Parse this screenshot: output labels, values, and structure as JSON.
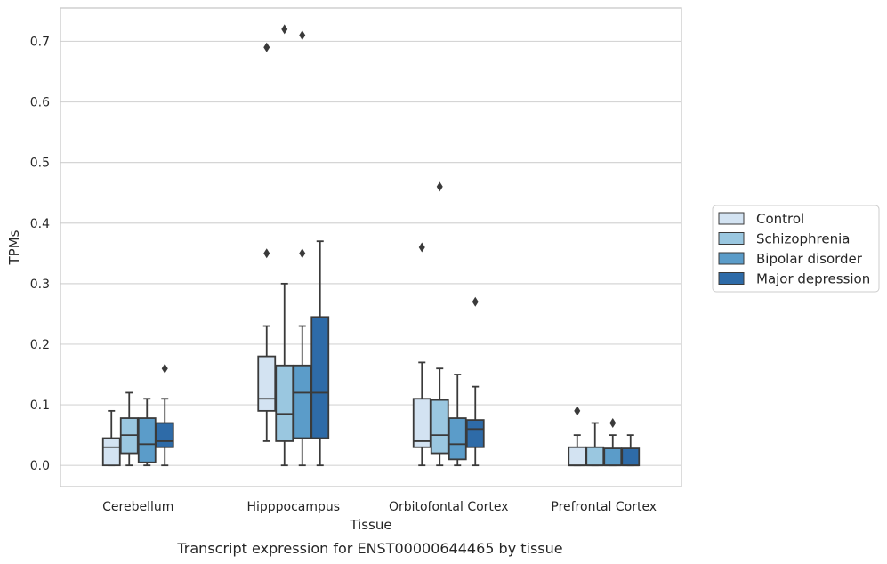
{
  "chart_data": {
    "type": "box",
    "title": "Transcript expression for ENST00000644465 by tissue",
    "xlabel": "Tissue",
    "ylabel": "TPMs",
    "ylim": [
      -0.035,
      0.755
    ],
    "yticks": [
      0.0,
      0.1,
      0.2,
      0.3,
      0.4,
      0.5,
      0.6,
      0.7
    ],
    "ytick_labels": [
      "0.0",
      "0.1",
      "0.2",
      "0.3",
      "0.4",
      "0.5",
      "0.6",
      "0.7"
    ],
    "grid": "horizontal",
    "legend_position": "right",
    "categories": [
      "Cerebellum",
      "Hipppocampus",
      "Orbitofontal Cortex",
      "Prefrontal Cortex"
    ],
    "series": [
      {
        "name": "Control",
        "color": "#d3e3f2",
        "boxes": [
          {
            "whislo": 0.0,
            "q1": 0.0,
            "med": 0.03,
            "q3": 0.045,
            "whishi": 0.09,
            "fliers": []
          },
          {
            "whislo": 0.04,
            "q1": 0.09,
            "med": 0.11,
            "q3": 0.18,
            "whishi": 0.23,
            "fliers": [
              0.35,
              0.69
            ]
          },
          {
            "whislo": 0.0,
            "q1": 0.03,
            "med": 0.04,
            "q3": 0.11,
            "whishi": 0.17,
            "fliers": [
              0.36
            ]
          },
          {
            "whislo": 0.0,
            "q1": 0.0,
            "med": 0.0,
            "q3": 0.03,
            "whishi": 0.05,
            "fliers": [
              0.09
            ]
          }
        ]
      },
      {
        "name": "Schizophrenia",
        "color": "#9ac7e0",
        "boxes": [
          {
            "whislo": 0.0,
            "q1": 0.02,
            "med": 0.05,
            "q3": 0.078,
            "whishi": 0.12,
            "fliers": []
          },
          {
            "whislo": 0.0,
            "q1": 0.04,
            "med": 0.085,
            "q3": 0.165,
            "whishi": 0.3,
            "fliers": [
              0.72
            ]
          },
          {
            "whislo": 0.0,
            "q1": 0.02,
            "med": 0.05,
            "q3": 0.108,
            "whishi": 0.16,
            "fliers": [
              0.46
            ]
          },
          {
            "whislo": 0.0,
            "q1": 0.0,
            "med": 0.0,
            "q3": 0.03,
            "whishi": 0.07,
            "fliers": []
          }
        ]
      },
      {
        "name": "Bipolar disorder",
        "color": "#5b9cc9",
        "boxes": [
          {
            "whislo": 0.0,
            "q1": 0.005,
            "med": 0.035,
            "q3": 0.078,
            "whishi": 0.11,
            "fliers": []
          },
          {
            "whislo": 0.0,
            "q1": 0.045,
            "med": 0.12,
            "q3": 0.165,
            "whishi": 0.23,
            "fliers": [
              0.35,
              0.71
            ]
          },
          {
            "whislo": 0.0,
            "q1": 0.01,
            "med": 0.035,
            "q3": 0.078,
            "whishi": 0.15,
            "fliers": []
          },
          {
            "whislo": 0.0,
            "q1": 0.0,
            "med": 0.0,
            "q3": 0.028,
            "whishi": 0.05,
            "fliers": [
              0.07
            ]
          }
        ]
      },
      {
        "name": "Major depression",
        "color": "#2e6ba8",
        "boxes": [
          {
            "whislo": 0.0,
            "q1": 0.03,
            "med": 0.04,
            "q3": 0.07,
            "whishi": 0.11,
            "fliers": [
              0.16
            ]
          },
          {
            "whislo": 0.0,
            "q1": 0.045,
            "med": 0.12,
            "q3": 0.245,
            "whishi": 0.37,
            "fliers": []
          },
          {
            "whislo": 0.0,
            "q1": 0.03,
            "med": 0.06,
            "q3": 0.075,
            "whishi": 0.13,
            "fliers": [
              0.27
            ]
          },
          {
            "whislo": 0.0,
            "q1": 0.0,
            "med": 0.0,
            "q3": 0.028,
            "whishi": 0.05,
            "fliers": []
          }
        ]
      }
    ]
  }
}
